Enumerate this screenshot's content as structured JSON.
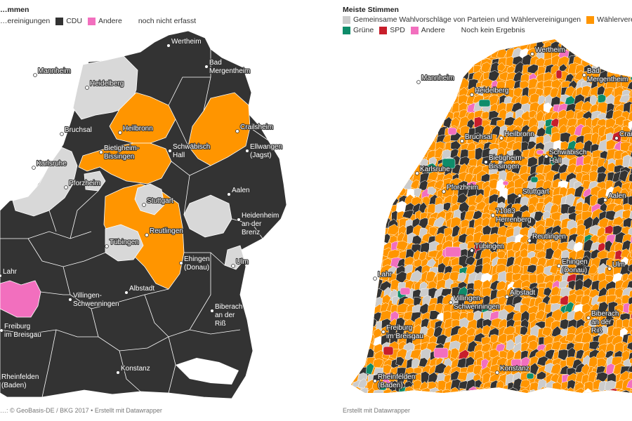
{
  "left_panel": {
    "title": "…mmen",
    "legend": [
      {
        "label": "…ereinigungen",
        "color": "#ff9500",
        "swatch": false
      },
      {
        "label": "CDU",
        "color": "#333333",
        "swatch": true
      },
      {
        "label": "Andere",
        "color": "#f26fbe",
        "swatch": true
      },
      {
        "label": "noch nicht erfasst",
        "color": "#ffffff",
        "swatch": true
      }
    ],
    "cities": [
      {
        "name": "Wertheim"
      },
      {
        "name": "Bad Mergentheim"
      },
      {
        "name": "Mannheim"
      },
      {
        "name": "Heidelberg"
      },
      {
        "name": "Heilbronn"
      },
      {
        "name": "Bruchsal"
      },
      {
        "name": "Crailsheim"
      },
      {
        "name": "Bietigheim-Bissingen"
      },
      {
        "name": "Schwäbisch Hall"
      },
      {
        "name": "Ellwangen (Jagst)"
      },
      {
        "name": "Karlsruhe"
      },
      {
        "name": "Pforzheim"
      },
      {
        "name": "Stuttgart"
      },
      {
        "name": "Aalen"
      },
      {
        "name": "Heidenheim an der Brenz"
      },
      {
        "name": "Reutlingen"
      },
      {
        "name": "Tübingen"
      },
      {
        "name": "Ehingen (Donau)"
      },
      {
        "name": "Ulm"
      },
      {
        "name": "Lahr"
      },
      {
        "name": "Albstadt"
      },
      {
        "name": "Villingen-Schwenningen"
      },
      {
        "name": "Biberach an der Riß"
      },
      {
        "name": "Freiburg im Breisgau"
      },
      {
        "name": "Konstanz"
      },
      {
        "name": "Rheinfelden (Baden)"
      }
    ],
    "footer": "…: © GeoBasis-DE / BKG 2017 • Erstellt mit Datawrapper"
  },
  "right_panel": {
    "title": "Meiste Stimmen",
    "legend": [
      {
        "label": "Gemeinsame Wahlvorschläge von Parteien und Wählervereinigungen",
        "color": "#cccccc"
      },
      {
        "label": "Wählervereinigungen",
        "color": "#ff9500"
      },
      {
        "label": "Grüne",
        "color": "#0e8c6a"
      },
      {
        "label": "SPD",
        "color": "#c81e2b"
      },
      {
        "label": "Andere",
        "color": "#f26fbe"
      },
      {
        "label": "Noch kein Ergebnis",
        "color": "#ffffff"
      }
    ],
    "cities": [
      {
        "name": "Wertheim"
      },
      {
        "name": "Bad Mergentheim"
      },
      {
        "name": "Mannheim"
      },
      {
        "name": "Heidelberg"
      },
      {
        "name": "Heilbronn"
      },
      {
        "name": "Bruchsal"
      },
      {
        "name": "Crail…"
      },
      {
        "name": "Bietigheim-Bissingen"
      },
      {
        "name": "Schwäbisch Hall"
      },
      {
        "name": "Karlsruhe"
      },
      {
        "name": "Pforzheim"
      },
      {
        "name": "Stuttgart"
      },
      {
        "name": "Aalen"
      },
      {
        "name": "71083 Herrenberg"
      },
      {
        "name": "Reutlingen"
      },
      {
        "name": "Tübingen"
      },
      {
        "name": "Ehingen (Donau)"
      },
      {
        "name": "Ulm"
      },
      {
        "name": "Lahr"
      },
      {
        "name": "Albstadt"
      },
      {
        "name": "Villingen-Schwenningen"
      },
      {
        "name": "Biberach an der Riß"
      },
      {
        "name": "Freiburg im Breisgau"
      },
      {
        "name": "Konstanz"
      },
      {
        "name": "Rheinfelden (Baden)"
      }
    ],
    "footer": "Erstellt mit Datawrapper"
  },
  "colors": {
    "cdu": "#333333",
    "waehlervereinigungen": "#ff9500",
    "andere": "#f26fbe",
    "gemeinsame": "#cccccc",
    "gruene": "#0e8c6a",
    "spd": "#c81e2b",
    "noch_kein_ergebnis": "#ffffff"
  }
}
